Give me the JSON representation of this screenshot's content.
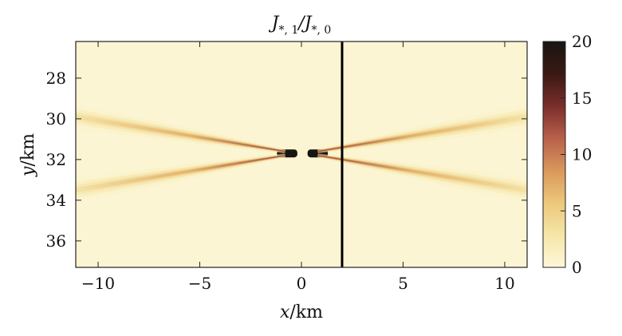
{
  "chart_data": {
    "type": "heatmap",
    "title": "J*,1/J*,0",
    "title_parts": {
      "main": "J",
      "sub1": "*, 1",
      "slash": "/J",
      "sub2": "*, 0"
    },
    "xlabel": {
      "var": "x",
      "unit": "/km"
    },
    "ylabel": {
      "var": "y",
      "unit": "/km"
    },
    "xlim": [
      -11.1,
      11.1
    ],
    "ylim": [
      37.3,
      26.2
    ],
    "y_inverted": true,
    "x_ticks": [
      -10,
      -5,
      0,
      5,
      10
    ],
    "x_tick_labels": [
      "−10",
      "−5",
      "0",
      "5",
      "10"
    ],
    "y_ticks": [
      28,
      30,
      32,
      34,
      36
    ],
    "y_tick_labels": [
      "28",
      "30",
      "32",
      "34",
      "36"
    ],
    "vertical_line": {
      "x": 2.0,
      "color": "#000000"
    },
    "colorbar": {
      "range": [
        0,
        20
      ],
      "ticks": [
        0,
        5,
        10,
        15,
        20
      ],
      "tick_labels": [
        "0",
        "5",
        "10",
        "15",
        "20"
      ],
      "colors": [
        "#fdf7d8",
        "#f5e6a8",
        "#ecc87a",
        "#d9985a",
        "#b8604c",
        "#7a2e2a",
        "#3a1814",
        "#181612"
      ]
    },
    "background_value": 0.3,
    "features": [
      {
        "name": "source-core-left",
        "x_range": [
          -1.2,
          -0.2
        ],
        "y": 31.7,
        "peak": 20
      },
      {
        "name": "source-core-right",
        "x_range": [
          0.3,
          1.3
        ],
        "y": 31.7,
        "peak": 20
      },
      {
        "name": "upper-ray-left",
        "from": [
          -0.8,
          31.6
        ],
        "to": [
          -11.1,
          29.9
        ],
        "peak": 14
      },
      {
        "name": "lower-ray-left",
        "from": [
          -0.8,
          31.8
        ],
        "to": [
          -11.1,
          33.5
        ],
        "peak": 14
      },
      {
        "name": "upper-ray-right",
        "from": [
          0.8,
          31.6
        ],
        "to": [
          11.1,
          29.9
        ],
        "peak": 14
      },
      {
        "name": "lower-ray-right",
        "from": [
          0.8,
          31.8
        ],
        "to": [
          11.1,
          33.5
        ],
        "peak": 14
      }
    ]
  }
}
